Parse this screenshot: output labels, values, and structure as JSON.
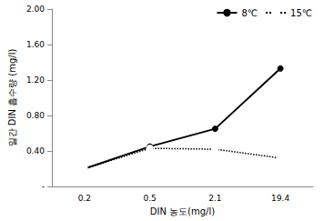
{
  "chart_data": {
    "type": "line",
    "x_label": "DIN 농도(mg/l)",
    "y_label": "일간 DIN 흡수량 (mg/l)",
    "categories": [
      "0.2",
      "0.5",
      "2.1",
      "19.4"
    ],
    "series": [
      {
        "name": "8℃",
        "color": "#000000",
        "line_style": "solid",
        "marker": "filled_circle",
        "values": [
          0.2,
          0.45,
          0.65,
          1.33
        ]
      },
      {
        "name": "15℃",
        "color": "#000000",
        "line_style": "dotted",
        "marker": "open_circle",
        "values": [
          0.2,
          0.43,
          0.42,
          0.32
        ]
      }
    ],
    "ylim": [
      0,
      2
    ],
    "yticks": [
      {
        "value": 0,
        "label": "-"
      },
      {
        "value": 0.4,
        "label": "0.40"
      },
      {
        "value": 0.8,
        "label": "0.80"
      },
      {
        "value": 1.2,
        "label": "1.20"
      },
      {
        "value": 1.6,
        "label": "1.60"
      },
      {
        "value": 2,
        "label": "2.00"
      }
    ],
    "grid": false,
    "legend": "top-right"
  }
}
